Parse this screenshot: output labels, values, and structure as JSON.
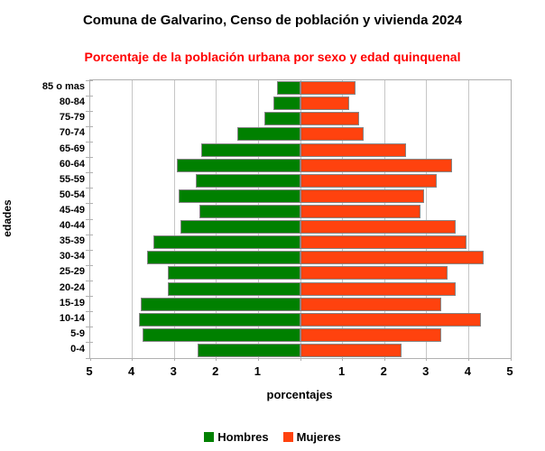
{
  "header": {
    "title": "Comuna de Galvarino, Censo de población y vivienda 2024",
    "subtitle": "Porcentaje de la población urbana por sexo y edad quinquenal",
    "subtitle_color": "#ff0000"
  },
  "chart_data": {
    "type": "bar",
    "variant": "population-pyramid-horizontal",
    "title": "Comuna de Galvarino, Censo de población y vivienda 2024",
    "subtitle": "Porcentaje de la población urbana por sexo y edad quinquenal",
    "xlabel": "porcentajes",
    "ylabel": "edades",
    "grid": true,
    "legend_position": "bottom",
    "axis_unit_percent": 1,
    "xlim_abs": [
      0,
      5
    ],
    "x_tick_labels": [
      "5",
      "4",
      "3",
      "2",
      "1",
      "",
      "1",
      "2",
      "3",
      "4",
      "5"
    ],
    "categories_top_to_bottom": [
      "85 o mas",
      "80-84",
      "75-79",
      "70-74",
      "65-69",
      "60-64",
      "55-59",
      "50-54",
      "45-49",
      "40-44",
      "35-39",
      "30-34",
      "25-29",
      "20-24",
      "15-19",
      "10-14",
      "5-9",
      "0-4"
    ],
    "series": [
      {
        "name": "Hombres",
        "side": "left",
        "color": "#008000",
        "values": [
          0.55,
          0.65,
          0.85,
          1.5,
          2.35,
          2.95,
          2.5,
          2.9,
          2.4,
          2.85,
          3.5,
          3.65,
          3.15,
          3.15,
          3.8,
          3.85,
          3.75,
          2.45
        ]
      },
      {
        "name": "Mujeres",
        "side": "right",
        "color": "#ff420e",
        "values": [
          1.3,
          1.15,
          1.4,
          1.5,
          2.5,
          3.6,
          3.25,
          2.95,
          2.85,
          3.7,
          3.95,
          4.35,
          3.5,
          3.7,
          3.35,
          4.3,
          3.35,
          2.4
        ]
      }
    ],
    "colors": {
      "bar_border": "#858585",
      "gridline": "#c6c6c6",
      "plot_border": "#b0b0b0"
    }
  }
}
